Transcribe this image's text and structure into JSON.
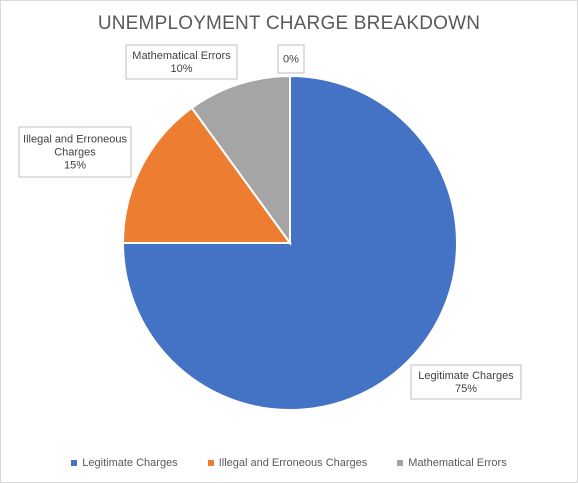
{
  "chart_data": {
    "type": "pie",
    "title": "UNEMPLOYMENT CHARGE BREAKDOWN",
    "slices": [
      {
        "label": "Legitimate Charges",
        "label_lines": [
          "Legitimate Charges"
        ],
        "value": 75,
        "percent_label": "75%",
        "color": "#4472C4"
      },
      {
        "label": "Illegal and Erroneous Charges",
        "label_lines": [
          "Illegal and Erroneous",
          "Charges"
        ],
        "value": 15,
        "percent_label": "15%",
        "color": "#ED7D31"
      },
      {
        "label": "Mathematical Errors",
        "label_lines": [
          "Mathematical Errors"
        ],
        "value": 10,
        "percent_label": "10%",
        "color": "#A5A5A5"
      },
      {
        "label": "",
        "label_lines": [],
        "value": 0,
        "percent_label": "0%",
        "color": "#FFC000"
      }
    ],
    "legend": {
      "position": "bottom",
      "items": [
        {
          "label": "Legitimate Charges",
          "color": "#4472C4"
        },
        {
          "label": "Illegal and Erroneous Charges",
          "color": "#ED7D31"
        },
        {
          "label": "Mathematical Errors",
          "color": "#A5A5A5"
        }
      ]
    }
  }
}
